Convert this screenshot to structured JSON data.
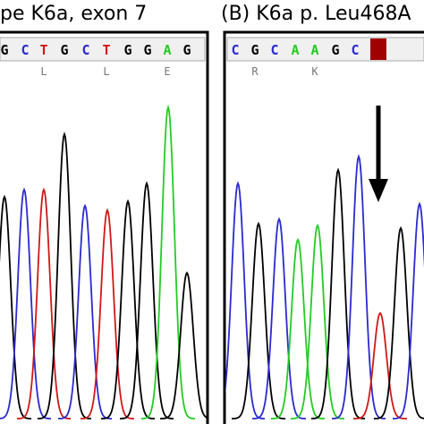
{
  "panel_a": {
    "title": "pe K6a, exon 7",
    "bases": [
      "G",
      "C",
      "T",
      "G",
      "C",
      "T",
      "G",
      "G",
      "A",
      "G"
    ],
    "amino_acids": [
      "L",
      "L",
      "E"
    ]
  },
  "panel_b": {
    "title": "(B) K6a p. Leu468A",
    "bases": [
      "C",
      "G",
      "C",
      "A",
      "A",
      "G",
      "C"
    ],
    "amino_acids": [
      "R",
      "K"
    ]
  }
}
